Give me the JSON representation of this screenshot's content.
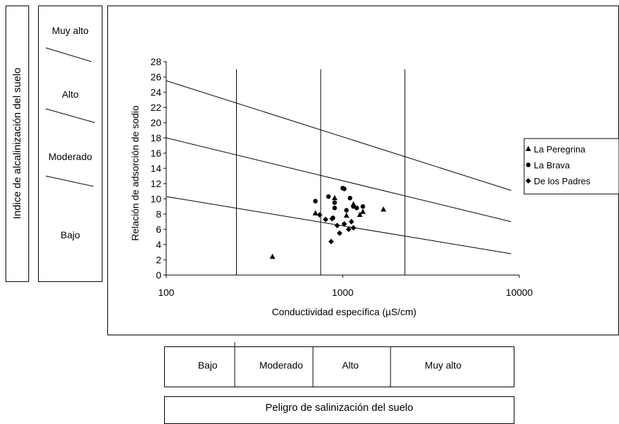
{
  "alkalinity_panel": {
    "title": "Indice de alcalinización del suelo",
    "classes": [
      "Muy alto",
      "Alto",
      "Moderado",
      "Bajo"
    ]
  },
  "salinity_panel": {
    "title": "Peligro de salinización del suelo",
    "classes": [
      "Bajo",
      "Moderado",
      "Alto",
      "Muy alto"
    ]
  },
  "chart_data": {
    "type": "scatter",
    "xlabel": "Conductividad específica (µS/cm)",
    "ylabel": "Relación de adsorción de sodio",
    "xscale": "log",
    "xlim": [
      100,
      10000
    ],
    "ylim": [
      0,
      28
    ],
    "xticks": [
      "100",
      "1000",
      "10000"
    ],
    "yticks": [
      "0",
      "2",
      "4",
      "6",
      "8",
      "10",
      "12",
      "14",
      "16",
      "18",
      "20",
      "22",
      "24",
      "26",
      "28"
    ],
    "legend_position": "right",
    "grid": false,
    "vertical_lines_x": [
      250,
      750,
      2250
    ],
    "class_lines": [
      {
        "x": [
          100,
          9000
        ],
        "y": [
          25.5,
          11.1
        ]
      },
      {
        "x": [
          100,
          9000
        ],
        "y": [
          18,
          7
        ]
      },
      {
        "x": [
          100,
          9000
        ],
        "y": [
          10.3,
          2.8
        ]
      }
    ],
    "series": [
      {
        "name": "La Peregrina",
        "marker": "triangle",
        "points": [
          [
            400,
            2.4
          ],
          [
            700,
            8.1
          ],
          [
            900,
            10.1
          ],
          [
            1050,
            7.8
          ],
          [
            1150,
            9.3
          ],
          [
            1250,
            7.9
          ],
          [
            1300,
            8.3
          ],
          [
            1700,
            8.6
          ]
        ]
      },
      {
        "name": "La Brava",
        "marker": "circle",
        "points": [
          [
            700,
            9.7
          ],
          [
            830,
            10.3
          ],
          [
            900,
            9.5
          ],
          [
            900,
            8.8
          ],
          [
            1000,
            11.4
          ],
          [
            1020,
            11.3
          ],
          [
            1100,
            10.1
          ],
          [
            1150,
            9.0
          ],
          [
            1200,
            8.8
          ],
          [
            1300,
            9.0
          ],
          [
            1050,
            8.5
          ],
          [
            880,
            7.5
          ]
        ]
      },
      {
        "name": "De los Padres",
        "marker": "diamond",
        "points": [
          [
            740,
            7.9
          ],
          [
            800,
            7.3
          ],
          [
            870,
            7.4
          ],
          [
            930,
            6.5
          ],
          [
            960,
            5.5
          ],
          [
            1020,
            6.7
          ],
          [
            1080,
            6.0
          ],
          [
            1120,
            7.0
          ],
          [
            1150,
            6.2
          ],
          [
            860,
            4.4
          ]
        ]
      }
    ]
  }
}
